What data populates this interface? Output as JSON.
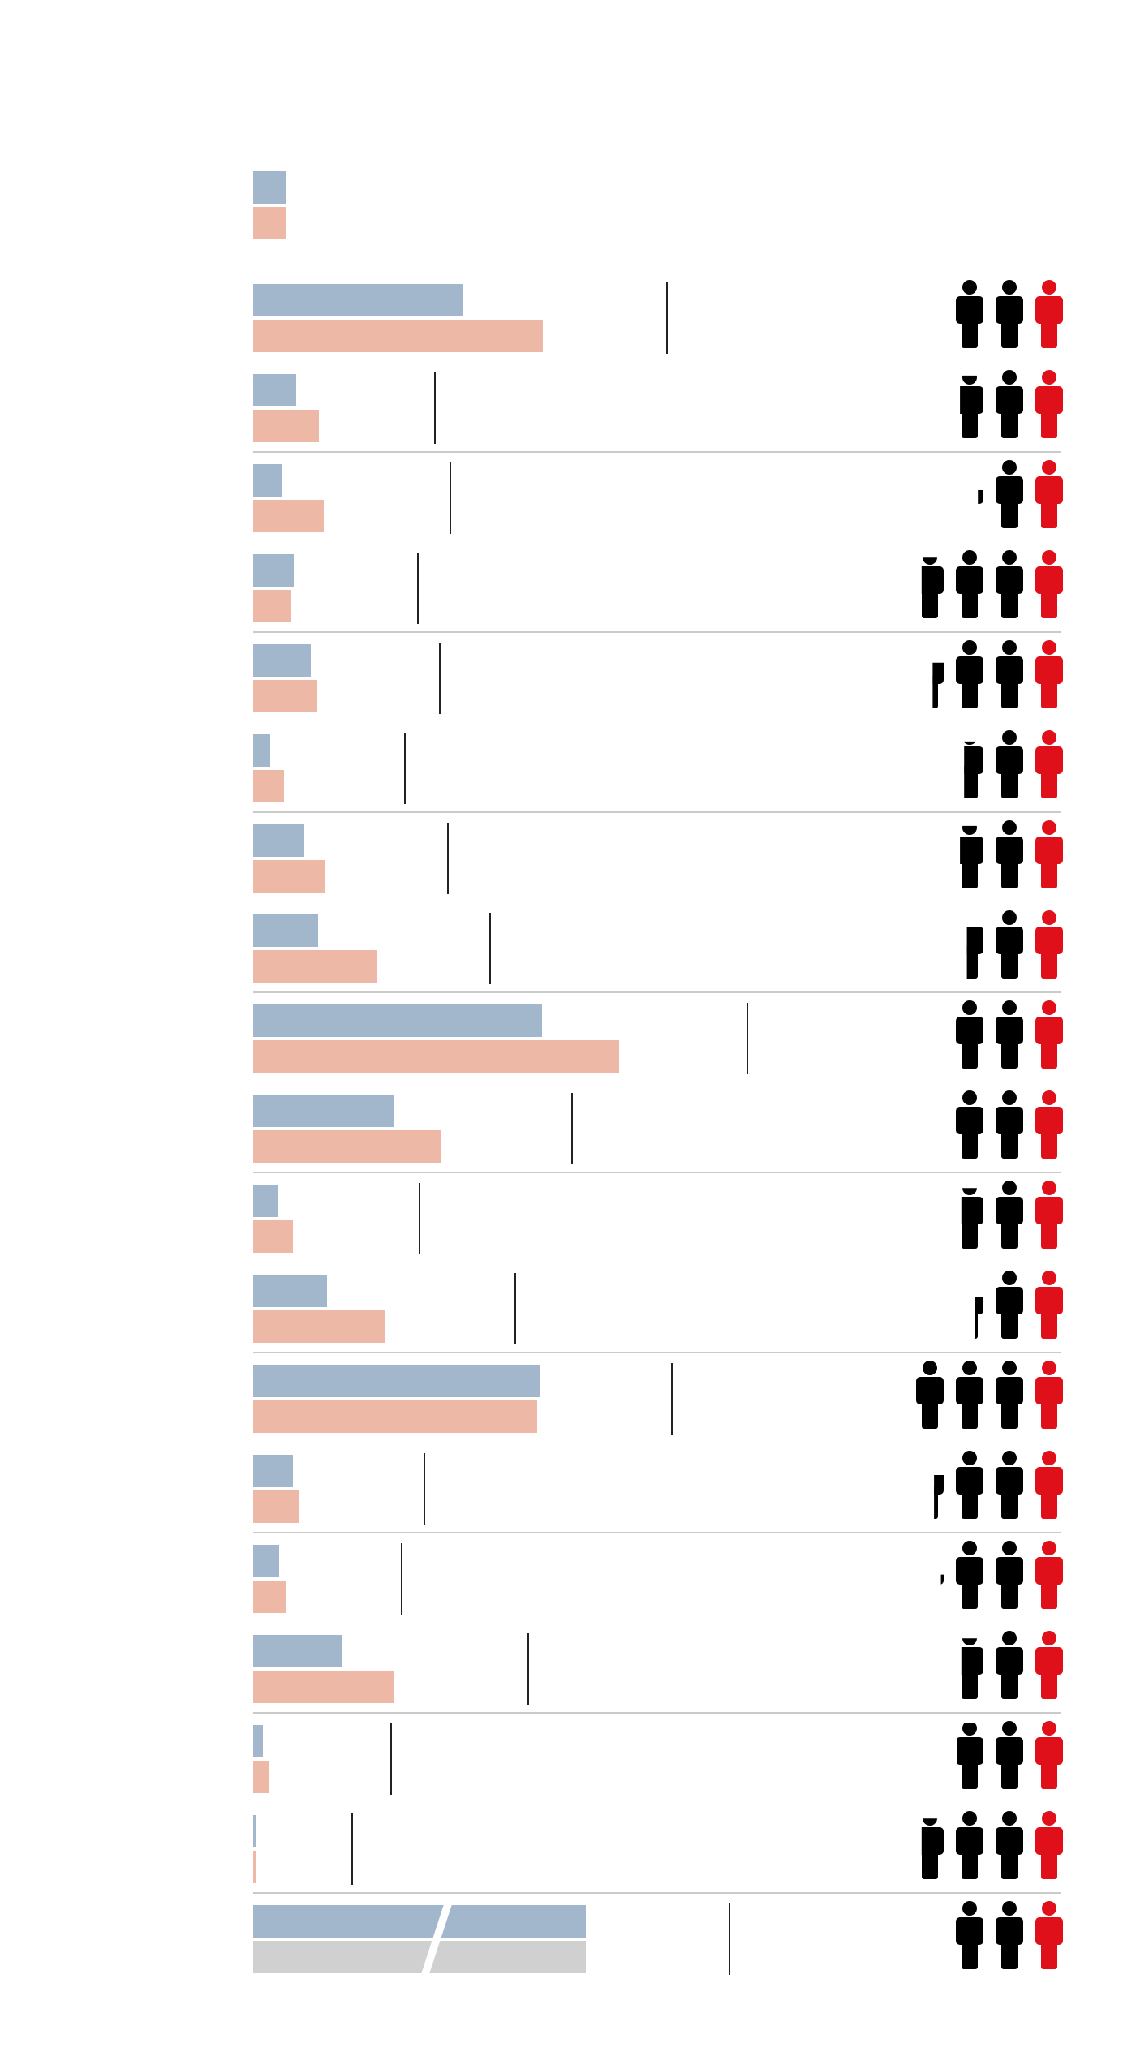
{
  "colors": {
    "series_a": "#a3b7cc",
    "series_b": "#eeb8a6",
    "series_b_last": "#d0d0d0",
    "marker": "#222222",
    "separator": "#b8b8b8",
    "icon_black": "#000000",
    "icon_red": "#e0101a"
  },
  "chart_data": {
    "type": "bar",
    "orientation": "horizontal",
    "title": "",
    "xlabel": "",
    "ylabel": "",
    "xlim": [
      0,
      100
    ],
    "grid": false,
    "legend": "none",
    "rows": [
      {
        "a": 4.0,
        "b": 4.0,
        "marker": null,
        "icons": null
      },
      {
        "a": 25.8,
        "b": 35.7,
        "marker": 51.0,
        "icons": {
          "black": 2.0,
          "red": 1
        }
      },
      {
        "a": 5.3,
        "b": 8.1,
        "marker": 22.4,
        "icons": {
          "black": 1.85,
          "red": 1
        }
      },
      {
        "a": 3.6,
        "b": 8.7,
        "marker": 24.3,
        "icons": {
          "black": 1.2,
          "red": 1
        }
      },
      {
        "a": 5.0,
        "b": 4.7,
        "marker": 20.3,
        "icons": {
          "black": 2.8,
          "red": 1
        }
      },
      {
        "a": 7.1,
        "b": 7.9,
        "marker": 23.0,
        "icons": {
          "black": 2.4,
          "red": 1
        }
      },
      {
        "a": 2.1,
        "b": 3.8,
        "marker": 18.7,
        "icons": {
          "black": 1.7,
          "red": 1
        }
      },
      {
        "a": 6.3,
        "b": 8.8,
        "marker": 24.0,
        "icons": {
          "black": 1.85,
          "red": 1
        }
      },
      {
        "a": 8.0,
        "b": 15.2,
        "marker": 29.2,
        "icons": {
          "black": 1.6,
          "red": 1
        }
      },
      {
        "a": 35.6,
        "b": 45.1,
        "marker": 60.9,
        "icons": {
          "black": 2.0,
          "red": 1
        }
      },
      {
        "a": 17.4,
        "b": 23.2,
        "marker": 39.3,
        "icons": {
          "black": 2.0,
          "red": 1
        }
      },
      {
        "a": 3.1,
        "b": 4.9,
        "marker": 20.5,
        "icons": {
          "black": 1.8,
          "red": 1
        }
      },
      {
        "a": 9.1,
        "b": 16.2,
        "marker": 32.3,
        "icons": {
          "black": 1.3,
          "red": 1
        }
      },
      {
        "a": 35.4,
        "b": 35.0,
        "marker": 51.6,
        "icons": {
          "black": 3.0,
          "red": 1
        }
      },
      {
        "a": 4.9,
        "b": 5.7,
        "marker": 21.1,
        "icons": {
          "black": 2.35,
          "red": 1
        }
      },
      {
        "a": 3.2,
        "b": 4.1,
        "marker": 18.3,
        "icons": {
          "black": 2.1,
          "red": 1
        }
      },
      {
        "a": 11.0,
        "b": 17.4,
        "marker": 33.9,
        "icons": {
          "black": 1.8,
          "red": 1
        }
      },
      {
        "a": 1.2,
        "b": 1.9,
        "marker": 17.0,
        "icons": {
          "black": 1.95,
          "red": 1
        }
      },
      {
        "a": 0.4,
        "b": 0.4,
        "marker": 12.2,
        "icons": {
          "black": 2.8,
          "red": 1
        }
      },
      {
        "a": 41.0,
        "b": 41.0,
        "marker": 58.7,
        "icons": {
          "black": 2.0,
          "red": 1
        },
        "axis_break": true
      }
    ]
  }
}
